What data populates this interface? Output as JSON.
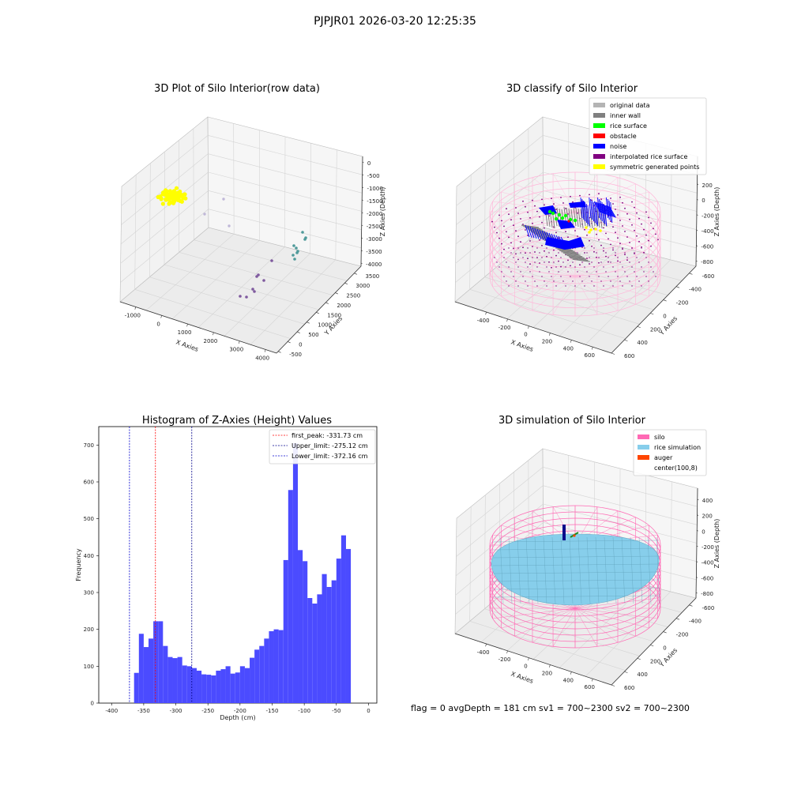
{
  "figure": {
    "suptitle": "PJPJR01 2026-03-20 12:25:35",
    "footer": "flag = 0     avgDepth = 181 cm  sv1 = 700~2300  sv2 = 700~2300"
  },
  "chart_data": [
    {
      "type": "scatter",
      "title": "3D Plot of Silo Interior(row data)",
      "xlabel": "X Axies",
      "ylabel": "Y Axies",
      "zlabel": "Z Axies (Depth)",
      "x_ticks": [
        "-1000",
        "0",
        "1000",
        "2000",
        "3000",
        "4000"
      ],
      "y_ticks": [
        "-500",
        "0",
        "500",
        "1000",
        "1500",
        "2000",
        "2500",
        "3000",
        "3500"
      ],
      "z_ticks": [
        "0",
        "-500",
        "-1000",
        "-1500",
        "-2000",
        "-2500",
        "-3000",
        "-3500",
        "-4000"
      ],
      "point_colors": [
        "#ffff00",
        "#c0b8d8",
        "#7f5a9f",
        "#4f9a9a",
        "#3fb0a0"
      ]
    },
    {
      "type": "scatter",
      "title": "3D classify of Silo Interior",
      "xlabel": "X Axies",
      "ylabel": "Y Axies",
      "zlabel": "Z Axies (Depth)",
      "x_ticks": [
        "-400",
        "-200",
        "0",
        "200",
        "400",
        "600"
      ],
      "y_ticks": [
        "600",
        "400",
        "200",
        "0",
        "-200",
        "-400",
        "-600"
      ],
      "z_ticks": [
        "200",
        "0",
        "-200",
        "-400",
        "-600",
        "-800"
      ],
      "legend": [
        {
          "label": "original data",
          "color": "#b4b4b4"
        },
        {
          "label": "inner wall",
          "color": "#808080"
        },
        {
          "label": "rice surface",
          "color": "#00ff00"
        },
        {
          "label": "obstacle",
          "color": "#ff0000"
        },
        {
          "label": "noise",
          "color": "#0000ff"
        },
        {
          "label": "interpolated rice surface",
          "color": "#800080"
        },
        {
          "label": "symmetric generated points",
          "color": "#ffff00"
        }
      ],
      "silo_wire_color": "#ffb6d9"
    },
    {
      "type": "bar",
      "title": "Histogram of Z-Axies (Height) Values",
      "xlabel": "Depth (cm)",
      "ylabel": "Frequency",
      "xlim": [
        -420,
        13
      ],
      "ylim": [
        0,
        750
      ],
      "x_ticks": [
        -400,
        -350,
        -300,
        -250,
        -200,
        -150,
        -100,
        -50,
        0
      ],
      "y_ticks": [
        0,
        100,
        200,
        300,
        400,
        500,
        600,
        700
      ],
      "bin_start": -365,
      "bin_width": 7.5,
      "values": [
        82,
        188,
        152,
        175,
        222,
        222,
        155,
        125,
        122,
        125,
        102,
        100,
        95,
        88,
        78,
        77,
        75,
        88,
        92,
        100,
        80,
        83,
        100,
        95,
        123,
        145,
        155,
        175,
        195,
        200,
        198,
        388,
        578,
        705,
        415,
        385,
        285,
        270,
        295,
        350,
        315,
        333,
        392,
        455,
        418
      ],
      "bar_color": "#4b4bff",
      "vlines": [
        {
          "label": "first_peak: -331.73 cm",
          "x": -331.73,
          "color": "#ff0000"
        },
        {
          "label": "Upper_limit: -275.12 cm",
          "x": -275.12,
          "color": "#00008b"
        },
        {
          "label": "Lower_limit: -372.16 cm",
          "x": -372.16,
          "color": "#0000cd"
        }
      ]
    },
    {
      "type": "scatter",
      "title": "3D simulation of Silo Interior",
      "xlabel": "X Axies",
      "ylabel": "Y Axies",
      "zlabel": "Z Axies (Depth)",
      "x_ticks": [
        "-400",
        "-200",
        "0",
        "200",
        "400",
        "600"
      ],
      "y_ticks": [
        "600",
        "400",
        "200",
        "0",
        "-200",
        "-400",
        "-600"
      ],
      "z_ticks": [
        "400",
        "200",
        "0",
        "-200",
        "-400",
        "-600",
        "-800"
      ],
      "legend": [
        {
          "label": "silo",
          "color": "#ff69b4"
        },
        {
          "label": "rice simulation",
          "color": "#87ceeb"
        },
        {
          "label": "auger",
          "color": "#ff4500"
        },
        {
          "label": "center(100,8)",
          "color": "#ffffff"
        }
      ]
    }
  ]
}
